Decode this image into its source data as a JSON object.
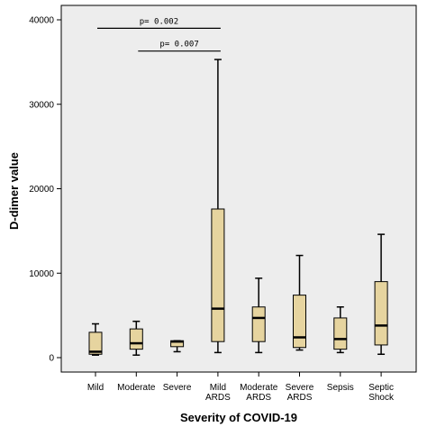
{
  "chart_data": {
    "type": "boxplot",
    "xlabel": "Severity of COVID-19",
    "ylabel": "D-dimer value",
    "ylim": [
      0,
      40000
    ],
    "yticks": [
      0,
      10000,
      20000,
      30000,
      40000
    ],
    "grid": false,
    "colors": {
      "box_fill": "#e6d49f",
      "plot_bg": "#ededed",
      "stroke": "#000000"
    },
    "categories": [
      [
        "Mild"
      ],
      [
        "Moderate"
      ],
      [
        "Severe"
      ],
      [
        "Mild",
        "ARDS"
      ],
      [
        "Moderate",
        "ARDS"
      ],
      [
        "Severe",
        "ARDS"
      ],
      [
        "Sepsis"
      ],
      [
        "Septic",
        "Shock"
      ]
    ],
    "boxes": [
      {
        "min": 300,
        "q1": 400,
        "median": 700,
        "q3": 3000,
        "max": 4000
      },
      {
        "min": 300,
        "q1": 1000,
        "median": 1700,
        "q3": 3400,
        "max": 4300
      },
      {
        "min": 700,
        "q1": 1300,
        "median": 1900,
        "q3": 2000,
        "max": 2000
      },
      {
        "min": 600,
        "q1": 1900,
        "median": 5800,
        "q3": 17600,
        "max": 35300
      },
      {
        "min": 600,
        "q1": 1900,
        "median": 4700,
        "q3": 6000,
        "max": 9400
      },
      {
        "min": 900,
        "q1": 1200,
        "median": 2400,
        "q3": 7400,
        "max": 12100
      },
      {
        "min": 600,
        "q1": 1000,
        "median": 2200,
        "q3": 4700,
        "max": 6000
      },
      {
        "min": 400,
        "q1": 1500,
        "median": 3800,
        "q3": 9000,
        "max": 14600
      }
    ],
    "annotations": [
      {
        "text": "p= 0.002",
        "from": 0,
        "to": 3,
        "y": 39000
      },
      {
        "text": "p= 0.007",
        "from": 1,
        "to": 3,
        "y": 36300
      }
    ]
  }
}
